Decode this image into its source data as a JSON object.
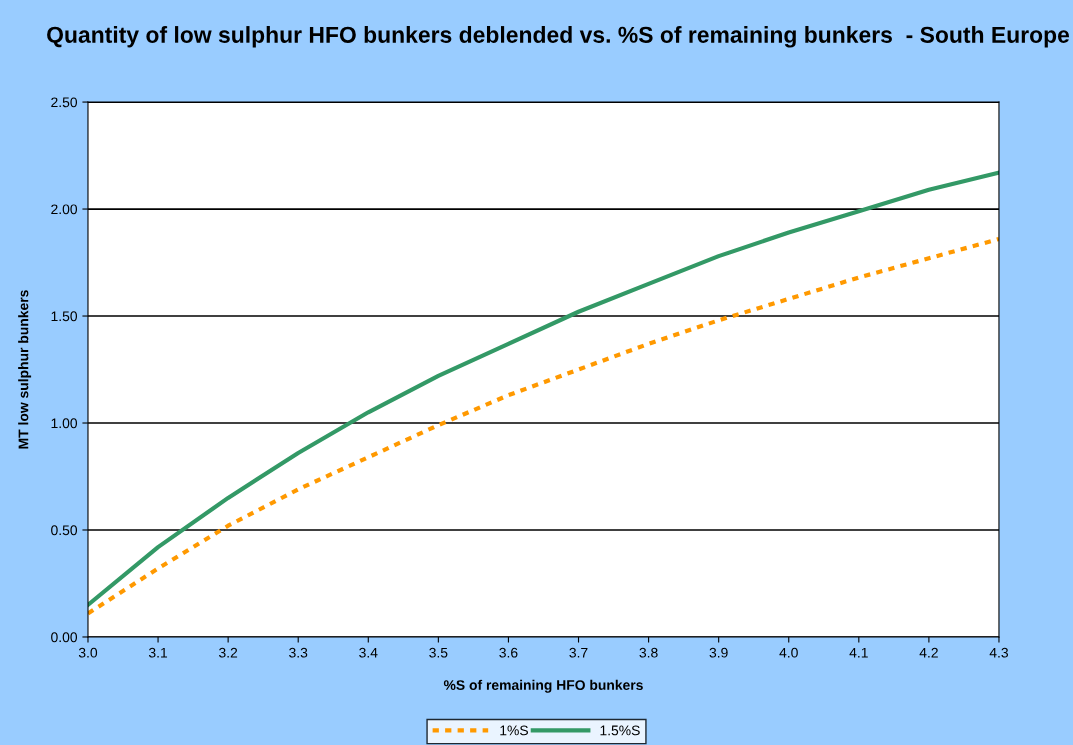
{
  "chart_data": {
    "type": "line",
    "title": "Quantity of low sulphur HFO bunkers deblended vs. %S of remaining bunkers  - South Europe",
    "xlabel": "%S of remaining HFO bunkers",
    "ylabel": "MT low sulphur bunkers",
    "x": [
      3.0,
      3.1,
      3.2,
      3.3,
      3.4,
      3.5,
      3.6,
      3.7,
      3.8,
      3.9,
      4.0,
      4.1,
      4.2,
      4.3
    ],
    "series": [
      {
        "name": "1%S",
        "color": "#ff9900",
        "line_style": "dashed",
        "values": [
          0.11,
          0.32,
          0.52,
          0.69,
          0.84,
          0.99,
          1.13,
          1.25,
          1.37,
          1.48,
          1.58,
          1.68,
          1.77,
          1.86
        ]
      },
      {
        "name": "1.5%S",
        "color": "#339966",
        "line_style": "solid",
        "values": [
          0.15,
          0.42,
          0.65,
          0.86,
          1.05,
          1.22,
          1.37,
          1.52,
          1.65,
          1.78,
          1.89,
          1.99,
          2.09,
          2.17
        ]
      }
    ],
    "xlim": [
      3.0,
      4.3
    ],
    "xticks": [
      {
        "value": 3.0,
        "label": "3.0"
      },
      {
        "value": 3.1,
        "label": "3.1"
      },
      {
        "value": 3.2,
        "label": "3.2"
      },
      {
        "value": 3.3,
        "label": "3.3"
      },
      {
        "value": 3.4,
        "label": "3.4"
      },
      {
        "value": 3.5,
        "label": "3.5"
      },
      {
        "value": 3.6,
        "label": "3.6"
      },
      {
        "value": 3.7,
        "label": "3.7"
      },
      {
        "value": 3.8,
        "label": "3.8"
      },
      {
        "value": 3.9,
        "label": "3.9"
      },
      {
        "value": 4.0,
        "label": "4.0"
      },
      {
        "value": 4.1,
        "label": "4.1"
      },
      {
        "value": 4.2,
        "label": "4.2"
      },
      {
        "value": 4.3,
        "label": "4.3"
      }
    ],
    "ylim": [
      0,
      2.5
    ],
    "yticks": [
      {
        "value": 0,
        "label": "0.00"
      },
      {
        "value": 0.5,
        "label": "0.50"
      },
      {
        "value": 1.0,
        "label": "1.00"
      },
      {
        "value": 1.5,
        "label": "1.50"
      },
      {
        "value": 2.0,
        "label": "2.00"
      },
      {
        "value": 2.5,
        "label": "2.50"
      }
    ],
    "grid": "y",
    "legend": "bottom",
    "marker": "none"
  }
}
